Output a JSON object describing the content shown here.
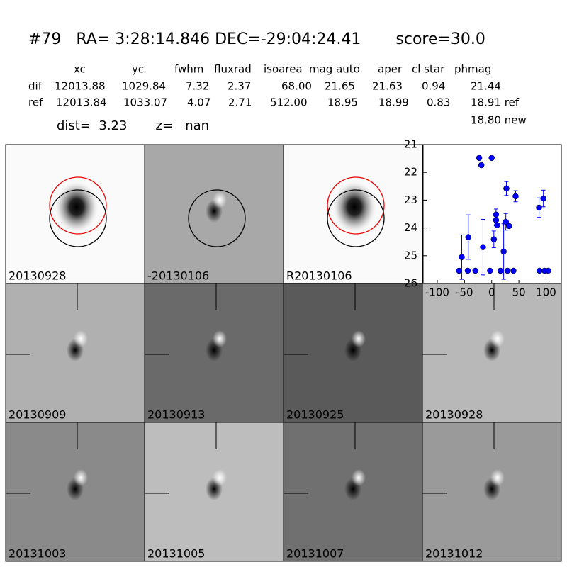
{
  "header": {
    "title": "#79   RA= 3:28:14.846 DEC=-29:04:24.41       score=30.0",
    "dist_line": "dist=  3.23       z=   nan"
  },
  "table": {
    "header": [
      "xc",
      "yc",
      "fwhm",
      "fluxrad",
      "isoarea",
      "mag auto",
      "aper",
      "cl star",
      "phmag"
    ],
    "rows": [
      [
        "dif",
        "12013.88",
        "1029.84",
        "7.32",
        "2.37",
        "68.00",
        "21.65",
        "21.63",
        "0.94",
        "21.44"
      ],
      [
        "ref",
        "12013.84",
        "1033.07",
        "4.07",
        "2.71",
        "512.00",
        "18.95",
        "18.99",
        "0.83",
        "18.91 ref"
      ]
    ],
    "extra": "18.80 new"
  },
  "stamps": [
    {
      "label": "20130928"
    },
    {
      "label": "-20130106"
    },
    {
      "label": "R20130106"
    },
    {
      "label": "20130909"
    },
    {
      "label": "20130913"
    },
    {
      "label": "20130925"
    },
    {
      "label": "20130928",
      "color": "#ff0000"
    },
    {
      "label": "20131003"
    },
    {
      "label": "20131005"
    },
    {
      "label": "20131007"
    },
    {
      "label": "20131012"
    }
  ],
  "chart_data": {
    "type": "scatter",
    "color": "#0000ff",
    "x": [
      -60,
      -55,
      -44,
      -43,
      -30,
      -23,
      -19,
      -16,
      -3,
      0,
      4,
      8,
      8,
      10,
      16,
      22,
      26,
      27,
      29,
      32,
      40,
      44,
      87,
      88,
      95,
      97,
      104
    ],
    "values": [
      25.54,
      25.05,
      25.54,
      24.33,
      25.54,
      21.48,
      21.74,
      24.69,
      25.54,
      21.48,
      24.41,
      23.52,
      23.72,
      23.9,
      25.54,
      24.85,
      23.78,
      22.58,
      25.54,
      23.93,
      25.54,
      22.86,
      23.27,
      25.54,
      22.94,
      25.54,
      25.54
    ],
    "errors": [
      null,
      0.8,
      null,
      0.8,
      null,
      null,
      null,
      1.0,
      null,
      null,
      0.3,
      0.2,
      0.2,
      null,
      null,
      1.0,
      0.3,
      0.25,
      null,
      null,
      null,
      0.2,
      0.35,
      null,
      0.3,
      null,
      null
    ],
    "xlim": [
      -126,
      128
    ],
    "ylim": [
      26,
      21
    ],
    "xticks": [
      -100,
      -50,
      0,
      50,
      100
    ],
    "yticks": [
      21,
      22,
      23,
      24,
      25,
      26
    ]
  }
}
